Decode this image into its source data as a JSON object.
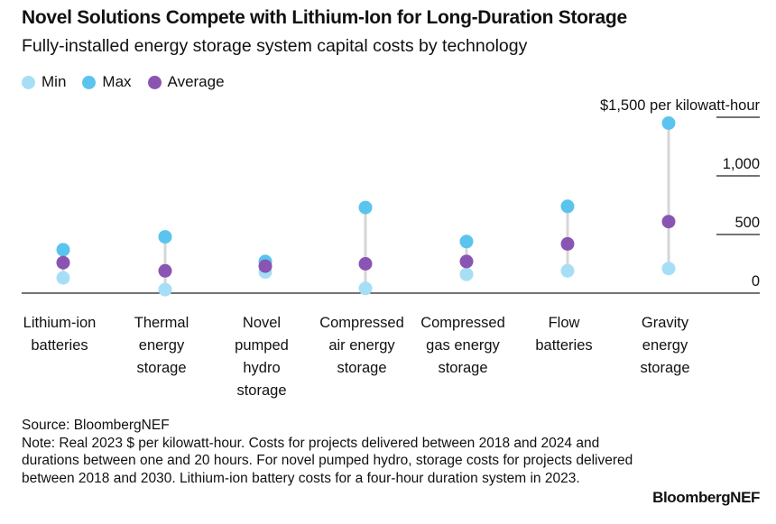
{
  "title": "Novel Solutions Compete with Lithium-Ion for Long-Duration Storage",
  "subtitle": "Fully-installed energy storage system capital costs by technology",
  "legend": {
    "min": "Min",
    "max": "Max",
    "average": "Average"
  },
  "colors": {
    "min": "#a6dff5",
    "max": "#5bc4ee",
    "average": "#8a55b2",
    "connector": "#d6d6d6"
  },
  "footer": {
    "source": "Source: BloombergNEF",
    "note": "Note: Real 2023 $ per kilowatt-hour. Costs for projects delivered between 2018 and 2024 and durations between one and 20 hours. For novel pumped hydro, storage costs for projects delivered between 2018 and 2030. Lithium-ion battery costs for a four-hour duration system in 2023."
  },
  "brand": "BloombergNEF",
  "chart_data": {
    "type": "scatter",
    "title": "Novel Solutions Compete with Lithium-Ion for Long-Duration Storage",
    "subtitle": "Fully-installed energy storage system capital costs by technology",
    "unit_label": "$1,500 per kilowatt-hour",
    "categories": [
      [
        "Lithium-ion",
        "batteries"
      ],
      [
        "Thermal",
        "energy",
        "storage"
      ],
      [
        "Novel",
        "pumped",
        "hydro",
        "storage"
      ],
      [
        "Compressed",
        "air energy",
        "storage"
      ],
      [
        "Compressed",
        "gas energy",
        "storage"
      ],
      [
        "Flow",
        "batteries"
      ],
      [
        "Gravity",
        "energy",
        "storage"
      ]
    ],
    "series": [
      {
        "name": "Min",
        "values": [
          130,
          30,
          180,
          40,
          160,
          190,
          210
        ]
      },
      {
        "name": "Max",
        "values": [
          370,
          480,
          270,
          730,
          440,
          740,
          1450
        ]
      },
      {
        "name": "Average",
        "values": [
          260,
          190,
          230,
          250,
          270,
          420,
          610
        ]
      }
    ],
    "y_ticks": [
      {
        "value": 0,
        "label": "0"
      },
      {
        "value": 500,
        "label": "500"
      },
      {
        "value": 1000,
        "label": "1,000"
      },
      {
        "value": 1500,
        "label": "$1,500 per kilowatt-hour"
      }
    ],
    "ylim": [
      0,
      1500
    ],
    "axis_side": "right",
    "legend_position": "top-left"
  }
}
